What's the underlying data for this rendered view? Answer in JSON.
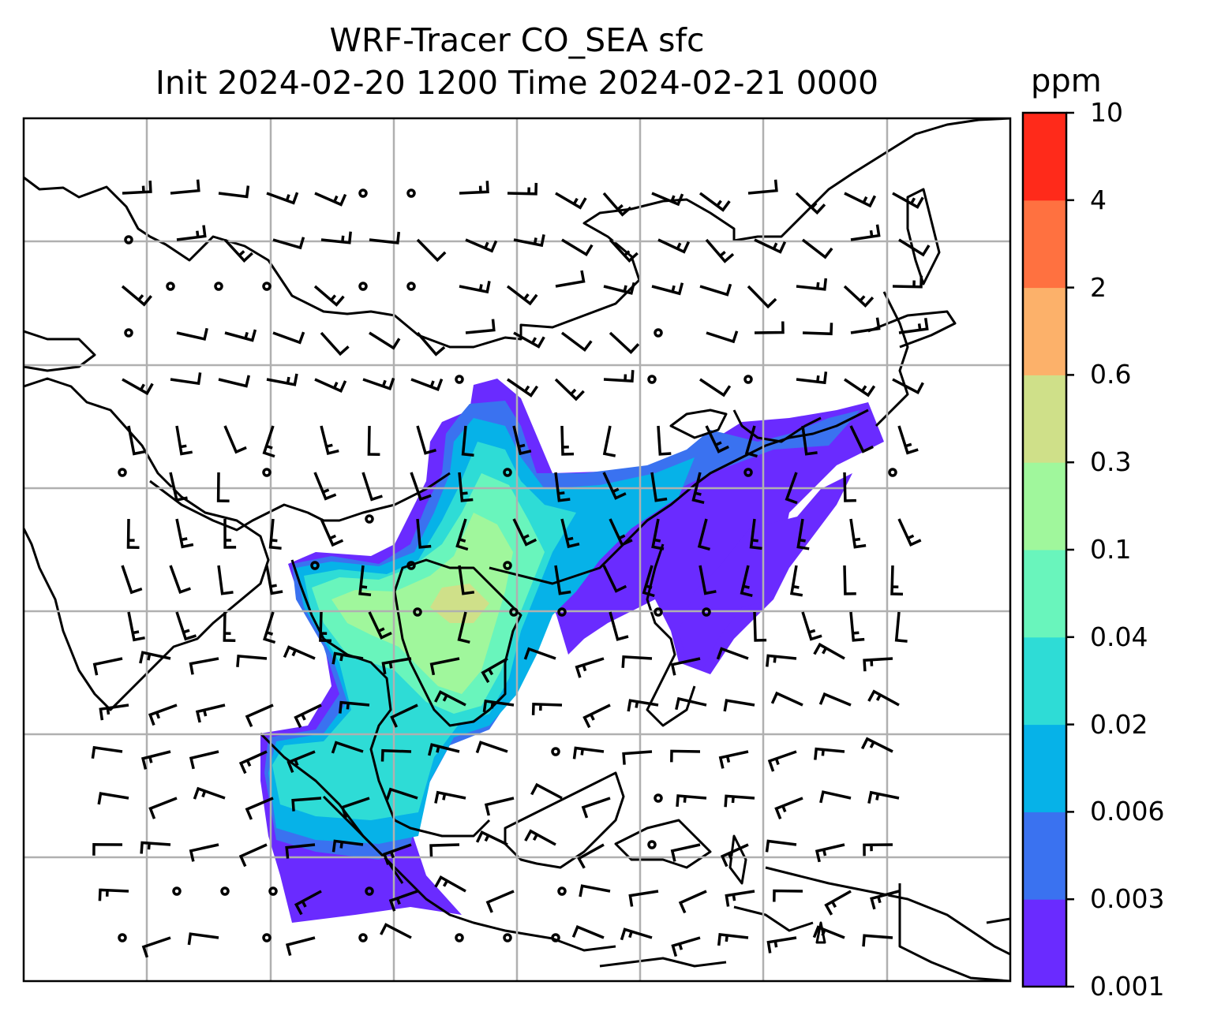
{
  "title": {
    "line1": "WRF-Tracer CO_SEA sfc",
    "line2": "Init 2024-02-20 1200 Time 2024-02-21 0000"
  },
  "colorbar": {
    "units": "ppm",
    "ticks": [
      "0.001",
      "0.003",
      "0.006",
      "0.02",
      "0.04",
      "0.1",
      "0.3",
      "0.6",
      "2",
      "4",
      "10"
    ],
    "colors": [
      "#6a2bff",
      "#3a72f0",
      "#06b2e8",
      "#2edcd6",
      "#69f5bc",
      "#a0f79c",
      "#cfe089",
      "#fcb16a",
      "#ff7140",
      "#ff2a1a"
    ]
  },
  "map": {
    "land_color": "#ffffff",
    "coastline_color": "#000000",
    "gridline_color": "#b0b0b0",
    "wind_barb_color": "#000000"
  }
}
